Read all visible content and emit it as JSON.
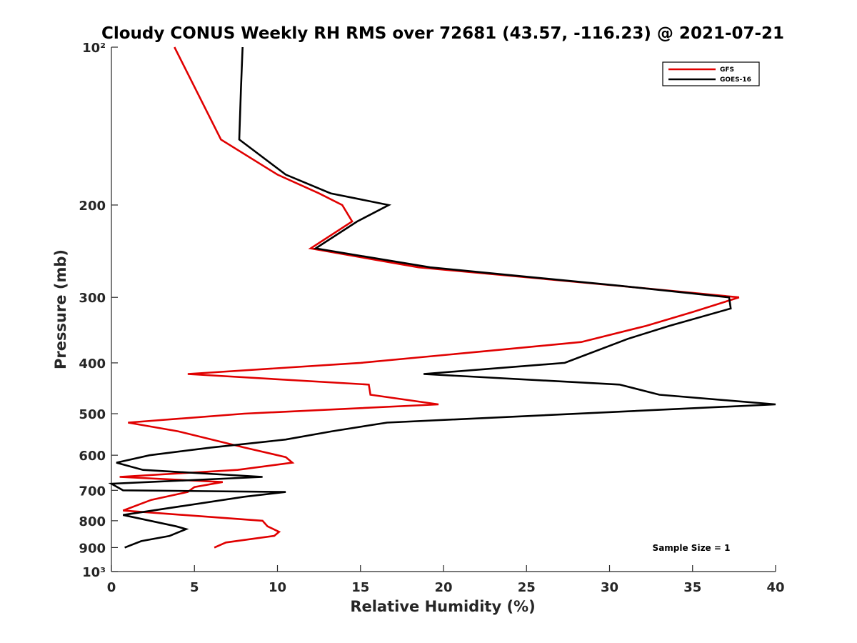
{
  "chart_data": {
    "type": "line",
    "title": "Cloudy CONUS Weekly RH RMS over 72681 (43.57, -116.23) @ 2021-07-21",
    "xlabel": "Relative Humidity (%)",
    "ylabel": "Pressure (mb)",
    "xlim": [
      0,
      40
    ],
    "ylim": [
      100,
      1000
    ],
    "y_scale": "log",
    "y_reversed": true,
    "x_ticks": [
      0,
      5,
      10,
      15,
      20,
      25,
      30,
      35,
      40
    ],
    "x_tick_labels": [
      "0",
      "5",
      "10",
      "15",
      "20",
      "25",
      "30",
      "35",
      "40"
    ],
    "y_ticks": [
      100,
      200,
      300,
      400,
      500,
      600,
      700,
      800,
      900,
      1000
    ],
    "y_tick_labels": [
      "10²",
      "200",
      "300",
      "400",
      "500",
      "600",
      "700",
      "800",
      "900",
      "10³"
    ],
    "grid": false,
    "legend": "top-right",
    "annotation": "Sample Size = 1",
    "series": [
      {
        "name": "GFS",
        "color": "#e00000",
        "points": [
          [
            3.8,
            100
          ],
          [
            6.6,
            150
          ],
          [
            10.0,
            175
          ],
          [
            12.5,
            190
          ],
          [
            13.9,
            200
          ],
          [
            14.5,
            215
          ],
          [
            12.0,
            242
          ],
          [
            18.5,
            263
          ],
          [
            30.5,
            285
          ],
          [
            37.8,
            300
          ],
          [
            35.0,
            320
          ],
          [
            32.2,
            340
          ],
          [
            28.3,
            365
          ],
          [
            22.5,
            380
          ],
          [
            15.0,
            400
          ],
          [
            4.6,
            420
          ],
          [
            15.5,
            440
          ],
          [
            15.6,
            460
          ],
          [
            19.7,
            480
          ],
          [
            8.0,
            500
          ],
          [
            1.0,
            520
          ],
          [
            4.0,
            540
          ],
          [
            8.0,
            580
          ],
          [
            10.5,
            605
          ],
          [
            10.9,
            620
          ],
          [
            7.6,
            640
          ],
          [
            0.5,
            660
          ],
          [
            6.7,
            675
          ],
          [
            5.0,
            690
          ],
          [
            4.6,
            705
          ],
          [
            2.4,
            730
          ],
          [
            0.7,
            765
          ],
          [
            9.1,
            800
          ],
          [
            9.4,
            820
          ],
          [
            10.1,
            840
          ],
          [
            9.8,
            855
          ],
          [
            6.9,
            880
          ],
          [
            6.2,
            900
          ]
        ]
      },
      {
        "name": "GOES-16",
        "color": "#000000",
        "points": [
          [
            7.9,
            100
          ],
          [
            7.8,
            120
          ],
          [
            7.7,
            150
          ],
          [
            10.5,
            175
          ],
          [
            13.2,
            190
          ],
          [
            16.7,
            200
          ],
          [
            14.8,
            215
          ],
          [
            12.3,
            242
          ],
          [
            19.2,
            263
          ],
          [
            30.6,
            285
          ],
          [
            37.2,
            300
          ],
          [
            37.3,
            315
          ],
          [
            33.6,
            340
          ],
          [
            31.1,
            360
          ],
          [
            27.3,
            400
          ],
          [
            18.8,
            420
          ],
          [
            30.6,
            440
          ],
          [
            33.0,
            460
          ],
          [
            40.0,
            480
          ],
          [
            16.6,
            520
          ],
          [
            13.3,
            540
          ],
          [
            10.5,
            560
          ],
          [
            6.0,
            580
          ],
          [
            2.3,
            600
          ],
          [
            0.3,
            620
          ],
          [
            1.9,
            640
          ],
          [
            9.1,
            660
          ],
          [
            0.0,
            680
          ],
          [
            0.7,
            700
          ],
          [
            10.5,
            705
          ],
          [
            8.0,
            720
          ],
          [
            0.7,
            780
          ],
          [
            3.9,
            820
          ],
          [
            4.5,
            830
          ],
          [
            3.5,
            855
          ],
          [
            1.8,
            875
          ],
          [
            0.8,
            900
          ]
        ]
      }
    ]
  }
}
